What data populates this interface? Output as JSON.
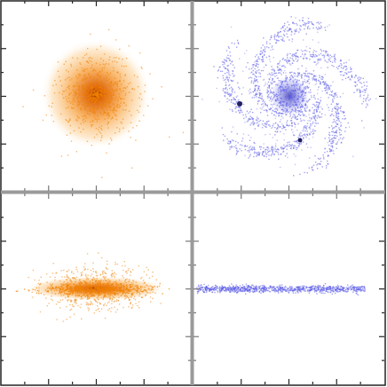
{
  "panels": [
    {
      "color": "#f08000"
    },
    {
      "color": "#5a5ae6"
    },
    {
      "color": "#f08000"
    },
    {
      "color": "#5a5ae6"
    }
  ]
}
